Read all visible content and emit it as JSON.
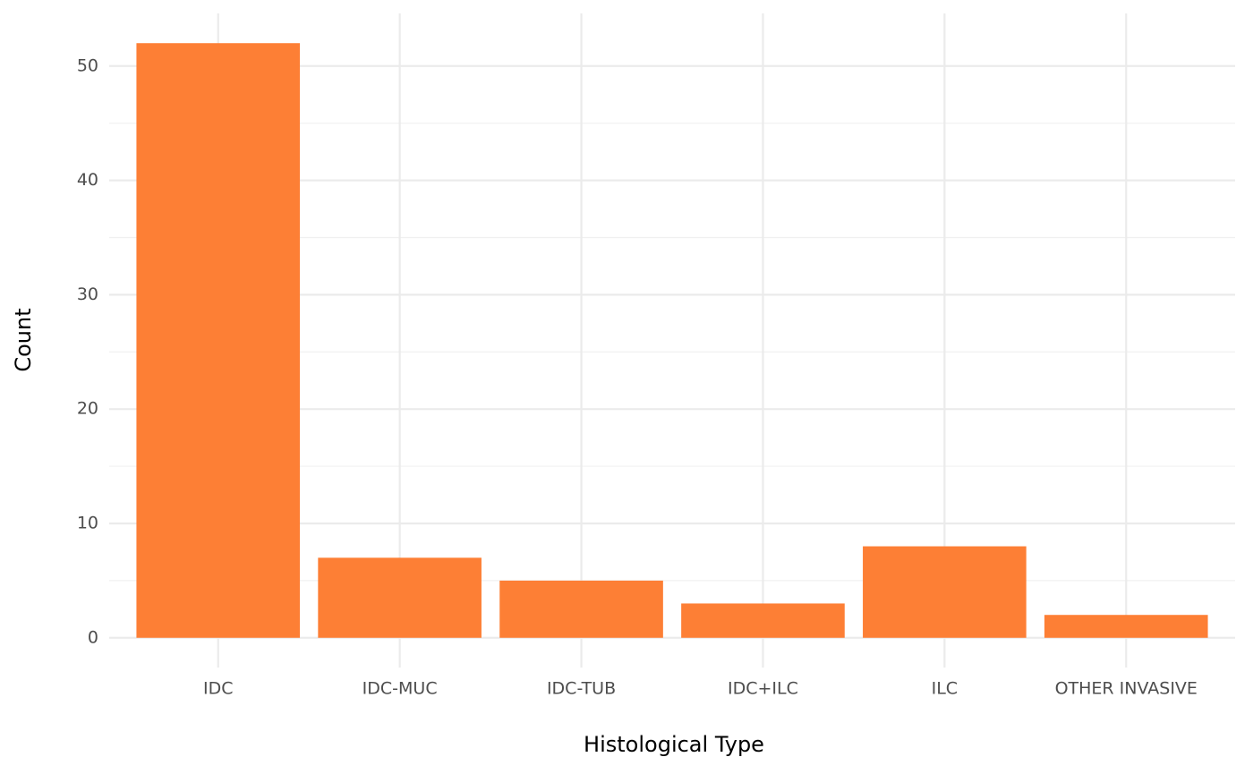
{
  "chart_data": {
    "type": "bar",
    "x_label": "Histological Type",
    "y_label": "Count",
    "categories": [
      "IDC",
      "IDC-MUC",
      "IDC-TUB",
      "IDC+ILC",
      "ILC",
      "OTHER INVASIVE"
    ],
    "values": [
      52,
      7,
      5,
      3,
      8,
      2
    ],
    "color": "#fd7f35",
    "ylim": [
      -2.6,
      54.6
    ],
    "yticks": [
      0,
      10,
      20,
      30,
      40,
      50
    ],
    "y_minor_ticks": [
      5,
      15,
      25,
      35,
      45
    ],
    "grid": true
  }
}
